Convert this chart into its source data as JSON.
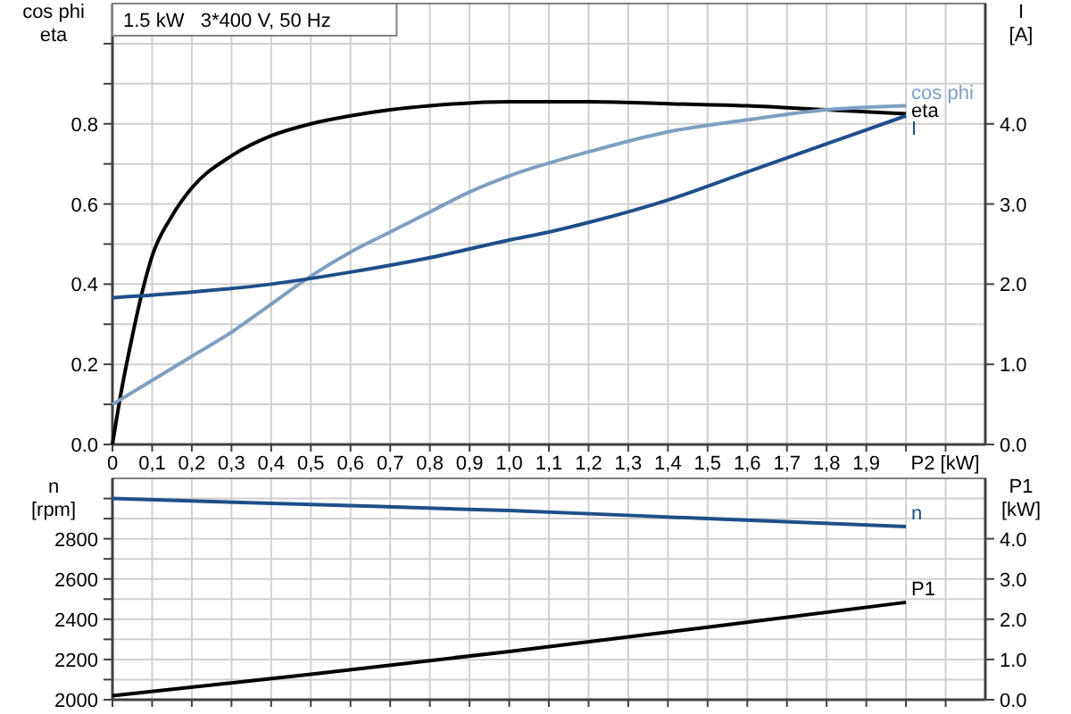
{
  "chart_data": [
    {
      "type": "line",
      "title": "1.5 kW   3*400 V, 50 Hz",
      "xlabel": "P2 [kW]",
      "ylabel": "cos phi\neta",
      "y2label": "I\n[A]",
      "xlim": [
        0,
        2.2
      ],
      "xticks": [
        0,
        {
          "value": 0.1,
          "label": "0,1"
        },
        {
          "value": 0.2,
          "label": "0,2"
        },
        {
          "value": 0.3,
          "label": "0,3"
        },
        {
          "value": 0.4,
          "label": "0,4"
        },
        {
          "value": 0.5,
          "label": "0,5"
        },
        {
          "value": 0.6,
          "label": "0,6"
        },
        {
          "value": 0.7,
          "label": "0,7"
        },
        {
          "value": 0.8,
          "label": "0,8"
        },
        {
          "value": 0.9,
          "label": "0,9"
        },
        {
          "value": 1.0,
          "label": "1,0"
        },
        {
          "value": 1.1,
          "label": "1,1"
        },
        {
          "value": 1.2,
          "label": "1,2"
        },
        {
          "value": 1.3,
          "label": "1,3"
        },
        {
          "value": 1.4,
          "label": "1,4"
        },
        {
          "value": 1.5,
          "label": "1,5"
        },
        {
          "value": 1.6,
          "label": "1,6"
        },
        {
          "value": 1.7,
          "label": "1,7"
        },
        {
          "value": 1.8,
          "label": "1,8"
        },
        {
          "value": 1.9,
          "label": "1,9"
        },
        {
          "value": 2.0,
          "label": null
        },
        {
          "value": 2.1,
          "label": null
        }
      ],
      "ylim": [
        0,
        1.1
      ],
      "yticks": [
        {
          "value": 0,
          "label": "0.0"
        },
        {
          "value": 0.1,
          "label": null
        },
        {
          "value": 0.2,
          "label": "0.2"
        },
        {
          "value": 0.3,
          "label": null
        },
        {
          "value": 0.4,
          "label": "0.4"
        },
        {
          "value": 0.5,
          "label": null
        },
        {
          "value": 0.6,
          "label": "0.6"
        },
        {
          "value": 0.7,
          "label": null
        },
        {
          "value": 0.8,
          "label": "0.8"
        },
        {
          "value": 0.9,
          "label": null
        },
        {
          "value": 1.0,
          "label": null
        }
      ],
      "y2lim": [
        0,
        5.5
      ],
      "y2ticks": [
        {
          "value": 0,
          "label": "0.0"
        },
        {
          "value": 1,
          "label": "1.0"
        },
        {
          "value": 2,
          "label": "2.0"
        },
        {
          "value": 3,
          "label": "3.0"
        },
        {
          "value": 4,
          "label": "4.0"
        }
      ],
      "grid": true,
      "marker": "none",
      "line_style": "solid",
      "series": [
        {
          "name": "eta",
          "color": "#000000",
          "x": [
            0,
            0.02,
            0.05,
            0.08,
            0.1,
            0.15,
            0.2,
            0.3,
            0.4,
            0.5,
            0.6,
            0.7,
            0.8,
            1.0,
            1.2,
            1.4,
            1.6,
            1.8,
            2.0
          ],
          "values": [
            0,
            0.12,
            0.27,
            0.4,
            0.47,
            0.57,
            0.64,
            0.72,
            0.77,
            0.8,
            0.82,
            0.835,
            0.845,
            0.855,
            0.855,
            0.85,
            0.845,
            0.835,
            0.825
          ]
        },
        {
          "name": "cos phi",
          "color": "#7f9fc0",
          "x": [
            0,
            0.1,
            0.2,
            0.3,
            0.4,
            0.5,
            0.6,
            0.7,
            0.8,
            0.9,
            1.0,
            1.2,
            1.4,
            1.6,
            1.8,
            2.0
          ],
          "values": [
            0.1,
            0.16,
            0.22,
            0.28,
            0.35,
            0.42,
            0.48,
            0.53,
            0.58,
            0.63,
            0.67,
            0.73,
            0.78,
            0.81,
            0.835,
            0.845
          ]
        },
        {
          "name": "I",
          "color": "#1f4e8a",
          "axis": "y2",
          "x": [
            0,
            0.2,
            0.4,
            0.6,
            0.8,
            1.0,
            1.1,
            1.2,
            1.4,
            1.6,
            1.8,
            2.0
          ],
          "values": [
            1.83,
            1.9,
            2.0,
            2.15,
            2.33,
            2.55,
            2.65,
            2.77,
            3.05,
            3.4,
            3.75,
            4.1
          ]
        }
      ]
    },
    {
      "type": "line",
      "ylabel": "n\n[rpm]",
      "y2label": "P1\n[kW]",
      "xlim": [
        0,
        2.2
      ],
      "tick_labels": "y",
      "xticks": [
        0,
        0.1,
        0.2,
        0.3,
        0.4,
        0.5,
        0.6,
        0.7,
        0.8,
        0.9,
        1.0,
        1.1,
        1.2,
        1.3,
        1.4,
        1.5,
        1.6,
        1.7,
        1.8,
        1.9,
        2.0,
        2.1
      ],
      "ylim": [
        2000,
        3100
      ],
      "yticks": [
        2000,
        {
          "value": 2100,
          "label": null
        },
        2200,
        {
          "value": 2300,
          "label": null
        },
        2400,
        {
          "value": 2500,
          "label": null
        },
        2600,
        {
          "value": 2700,
          "label": null
        },
        2800,
        {
          "value": 2900,
          "label": null
        },
        {
          "value": 3000,
          "label": null
        }
      ],
      "y2lim": [
        0,
        5.5
      ],
      "y2ticks": [
        {
          "value": 0,
          "label": "0.0"
        },
        {
          "value": 1,
          "label": "1.0"
        },
        {
          "value": 2,
          "label": "2.0"
        },
        {
          "value": 3,
          "label": "3.0"
        },
        {
          "value": 4,
          "label": "4.0"
        }
      ],
      "grid": true,
      "marker": "none",
      "line_style": "solid",
      "series": [
        {
          "name": "n",
          "color": "#1f4e8a",
          "x": [
            0,
            0.5,
            1.0,
            1.5,
            2.0
          ],
          "values": [
            3000,
            2970,
            2940,
            2900,
            2860
          ]
        },
        {
          "name": "P1",
          "color": "#000000",
          "axis": "y2",
          "x": [
            0,
            0.5,
            1.0,
            1.5,
            2.0
          ],
          "values": [
            0.1,
            0.63,
            1.2,
            1.8,
            2.42
          ]
        }
      ]
    }
  ]
}
